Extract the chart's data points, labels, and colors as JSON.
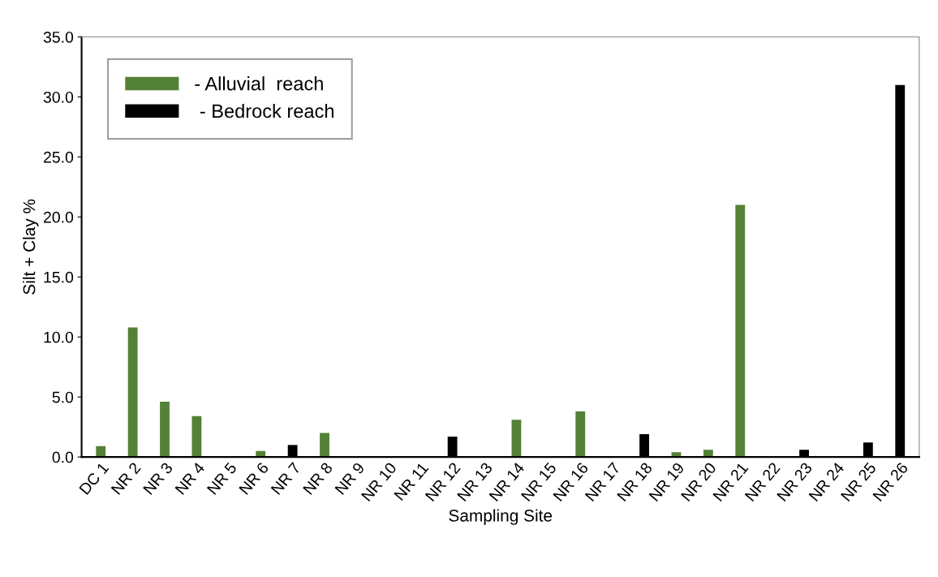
{
  "chart_data": {
    "type": "bar",
    "xlabel": "Sampling Site",
    "ylabel": "Silt + Clay %",
    "categories": [
      "DC 1",
      "NR 2",
      "NR 3",
      "NR 4",
      "NR 5",
      "NR 6",
      "NR 7",
      "NR 8",
      "NR 9",
      "NR 10",
      "NR 11",
      "NR 12",
      "NR 13",
      "NR 14",
      "NR 15",
      "NR 16",
      "NR 17",
      "NR 18",
      "NR 19",
      "NR 20",
      "NR 21",
      "NR 22",
      "NR 23",
      "NR 24",
      "NR 25",
      "NR 26"
    ],
    "series": [
      {
        "name": "- Alluvial  reach",
        "color": "#538135",
        "values": [
          0.9,
          10.8,
          4.6,
          3.4,
          null,
          0.5,
          null,
          2.0,
          null,
          null,
          null,
          null,
          null,
          3.1,
          null,
          3.8,
          null,
          null,
          0.4,
          0.6,
          21.0,
          null,
          null,
          null,
          null,
          null
        ]
      },
      {
        "name": " - Bedrock reach",
        "color": "#000000",
        "values": [
          null,
          null,
          null,
          null,
          null,
          null,
          1.0,
          null,
          null,
          null,
          null,
          1.7,
          null,
          null,
          null,
          null,
          null,
          1.9,
          null,
          null,
          null,
          null,
          0.6,
          null,
          1.2,
          31.0
        ]
      }
    ],
    "ylim": [
      0,
      35
    ],
    "yticks": [
      {
        "value": 0,
        "label": "0.0"
      },
      {
        "value": 5,
        "label": "5.0"
      },
      {
        "value": 10,
        "label": "10.0"
      },
      {
        "value": 15,
        "label": "15.0"
      },
      {
        "value": 20,
        "label": "20.0"
      },
      {
        "value": 25,
        "label": "25.0"
      },
      {
        "value": 30,
        "label": "30.0"
      },
      {
        "value": 35,
        "label": "35.0"
      }
    ],
    "legend": "top left"
  }
}
